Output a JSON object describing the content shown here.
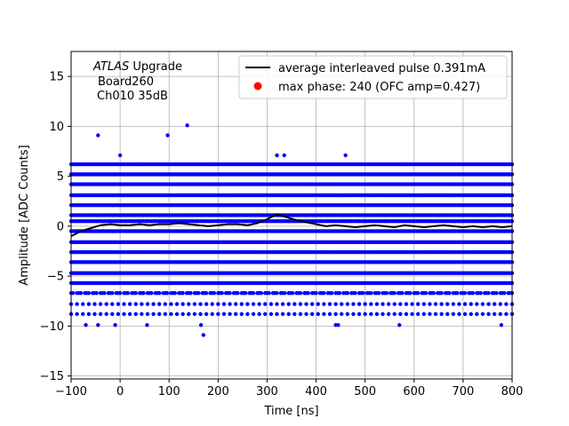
{
  "chart_data": {
    "type": "scatter",
    "xlabel": "Time [ns]",
    "ylabel": "Amplitude [ADC Counts]",
    "xlim": [
      -100,
      800
    ],
    "ylim": [
      -15.3,
      17.5
    ],
    "xticks": [
      -100,
      0,
      100,
      200,
      300,
      400,
      500,
      600,
      700,
      800
    ],
    "yticks": [
      -15,
      -10,
      -5,
      0,
      5,
      10,
      15
    ],
    "grid": true,
    "legend_position": "top-right",
    "annotation": {
      "italic": "ATLAS",
      "line1_rest": " Upgrade",
      "line2": "Board260",
      "line3": "Ch010 35dB"
    },
    "series": [
      {
        "name": "average interleaved pulse 0.391mA",
        "kind": "line",
        "color": "#000000",
        "x": [
          -100,
          -80,
          -60,
          -40,
          -20,
          0,
          20,
          40,
          60,
          80,
          100,
          120,
          140,
          160,
          180,
          200,
          220,
          240,
          260,
          280,
          300,
          320,
          340,
          360,
          380,
          400,
          420,
          440,
          460,
          480,
          500,
          520,
          540,
          560,
          580,
          600,
          620,
          640,
          660,
          680,
          700,
          720,
          740,
          760,
          780,
          800
        ],
        "y": [
          -1.0,
          -0.5,
          -0.2,
          0.1,
          0.2,
          0.1,
          0.1,
          0.2,
          0.1,
          0.2,
          0.2,
          0.3,
          0.2,
          0.1,
          0.0,
          0.1,
          0.2,
          0.2,
          0.1,
          0.3,
          0.7,
          1.2,
          0.9,
          0.6,
          0.4,
          0.2,
          0.0,
          0.1,
          0.0,
          -0.1,
          0.0,
          0.1,
          0.0,
          -0.1,
          0.1,
          0.0,
          -0.1,
          0.0,
          0.1,
          0.0,
          -0.1,
          0.0,
          -0.1,
          0.0,
          -0.1,
          0.0
        ]
      },
      {
        "name": "max phase: 240 (OFC amp=0.427)",
        "kind": "scatter",
        "color": "#0000ff",
        "band_levels": [
          -8.8,
          -7.8,
          -6.7,
          -5.7,
          -4.7,
          -3.6,
          -2.6,
          -1.6,
          -0.5,
          0.5,
          1.1,
          2.1,
          3.1,
          4.2,
          5.2,
          6.2
        ],
        "band_x_step": 4,
        "outliers": [
          {
            "x": -45,
            "y": 9.1
          },
          {
            "x": 0,
            "y": 7.1
          },
          {
            "x": 97,
            "y": 9.1
          },
          {
            "x": 137,
            "y": 10.1
          },
          {
            "x": 320,
            "y": 7.1
          },
          {
            "x": 335,
            "y": 7.1
          },
          {
            "x": 460,
            "y": 7.1
          },
          {
            "x": -70,
            "y": -9.9
          },
          {
            "x": -45,
            "y": -9.9
          },
          {
            "x": -10,
            "y": -9.9
          },
          {
            "x": 55,
            "y": -9.9
          },
          {
            "x": 165,
            "y": -9.9
          },
          {
            "x": 170,
            "y": -10.9
          },
          {
            "x": 440,
            "y": -9.9
          },
          {
            "x": 445,
            "y": -9.9
          },
          {
            "x": 570,
            "y": -9.9
          },
          {
            "x": 778,
            "y": -9.9
          }
        ]
      }
    ]
  }
}
